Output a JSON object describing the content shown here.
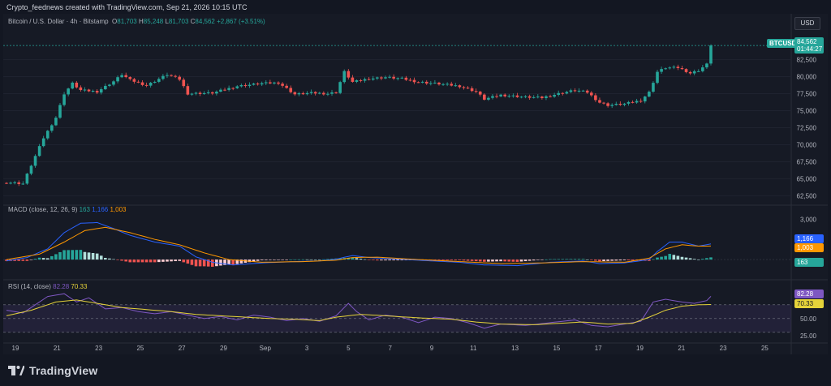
{
  "header": {
    "caption": "Crypto_feednews created with TradingView.com, Sep 21, 2026 10:15 UTC"
  },
  "currency_button": "USD",
  "price_legend": {
    "symbol": "Bitcoin / U.S. Dollar · 4h · Bitstamp",
    "o_label": "O",
    "o_val": "81,703",
    "h_label": "H",
    "h_val": "85,248",
    "l_label": "L",
    "l_val": "81,703",
    "c_label": "C",
    "c_val": "84,562",
    "change": "+2,867 (+3.51%)"
  },
  "macd_legend": {
    "name": "MACD (close, 12, 26, 9)",
    "hist": "163",
    "macd": "1,166",
    "signal": "1,003"
  },
  "rsi_legend": {
    "name": "RSI (14, close)",
    "rsi": "82.28",
    "ma": "70.33"
  },
  "price_tag": {
    "symbol": "BTCUSD",
    "price": "84,562",
    "countdown": "01:44:27"
  },
  "macd_tags": {
    "macd": "1,166",
    "signal": "1,003",
    "hist": "163"
  },
  "rsi_tags": {
    "rsi": "82.28",
    "ma": "70.33"
  },
  "brand": {
    "name": "TradingView"
  },
  "colors": {
    "up": "#26a69a",
    "down": "#ef5350",
    "macd": "#2962ff",
    "signal": "#ff9800",
    "rsi": "#7e57c2",
    "rsi_ma": "#e5d33a"
  },
  "chart_data": [
    {
      "type": "candlestick",
      "title": "Bitcoin / U.S. Dollar · 4h · Bitstamp",
      "ylim": [
        61500,
        86000
      ],
      "yticks": [
        "62,500",
        "65,000",
        "67,500",
        "70,000",
        "72,500",
        "75,000",
        "77,500",
        "80,000",
        "82,500"
      ],
      "xticks": [
        "19",
        "21",
        "23",
        "25",
        "27",
        "29",
        "Sep",
        "3",
        "5",
        "7",
        "9",
        "11",
        "13",
        "15",
        "17",
        "19",
        "21",
        "23",
        "25"
      ],
      "anchors": [
        [
          0,
          64500
        ],
        [
          4,
          64300
        ],
        [
          6,
          67000
        ],
        [
          9,
          71000
        ],
        [
          12,
          74000
        ],
        [
          14,
          77500
        ],
        [
          16,
          79000
        ],
        [
          18,
          78000
        ],
        [
          22,
          77800
        ],
        [
          26,
          79300
        ],
        [
          28,
          80300
        ],
        [
          30,
          79500
        ],
        [
          34,
          78700
        ],
        [
          39,
          80300
        ],
        [
          42,
          79600
        ],
        [
          44,
          77500
        ],
        [
          50,
          77600
        ],
        [
          56,
          78600
        ],
        [
          62,
          79000
        ],
        [
          66,
          79100
        ],
        [
          70,
          77400
        ],
        [
          74,
          77600
        ],
        [
          78,
          77500
        ],
        [
          80,
          77700
        ],
        [
          82,
          80700
        ],
        [
          84,
          79200
        ],
        [
          88,
          79700
        ],
        [
          92,
          79900
        ],
        [
          96,
          79700
        ],
        [
          100,
          79200
        ],
        [
          104,
          79000
        ],
        [
          110,
          78600
        ],
        [
          114,
          77800
        ],
        [
          116,
          76700
        ],
        [
          120,
          77300
        ],
        [
          126,
          77000
        ],
        [
          130,
          76900
        ],
        [
          134,
          77500
        ],
        [
          138,
          78000
        ],
        [
          141,
          77700
        ],
        [
          144,
          76200
        ],
        [
          146,
          75800
        ],
        [
          150,
          76000
        ],
        [
          154,
          76500
        ],
        [
          156,
          77700
        ],
        [
          158,
          80700
        ],
        [
          160,
          81300
        ],
        [
          163,
          81300
        ],
        [
          165,
          80800
        ],
        [
          166,
          80500
        ],
        [
          168,
          80900
        ],
        [
          170,
          81800
        ],
        [
          171,
          84562
        ]
      ],
      "candle_count": 172
    },
    {
      "type": "macd",
      "ylim": [
        -1200,
        3500
      ],
      "yticks": [
        "3,000"
      ],
      "macd_anchors": [
        [
          0,
          -100
        ],
        [
          5,
          150
        ],
        [
          10,
          800
        ],
        [
          14,
          2000
        ],
        [
          18,
          2700
        ],
        [
          22,
          2750
        ],
        [
          26,
          2300
        ],
        [
          30,
          1800
        ],
        [
          36,
          1300
        ],
        [
          42,
          1000
        ],
        [
          46,
          200
        ],
        [
          50,
          -200
        ],
        [
          55,
          -400
        ],
        [
          62,
          -250
        ],
        [
          70,
          -150
        ],
        [
          76,
          -100
        ],
        [
          80,
          30
        ],
        [
          84,
          300
        ],
        [
          88,
          150
        ],
        [
          94,
          50
        ],
        [
          100,
          -50
        ],
        [
          110,
          -200
        ],
        [
          116,
          -400
        ],
        [
          124,
          -450
        ],
        [
          132,
          -200
        ],
        [
          140,
          -100
        ],
        [
          144,
          -300
        ],
        [
          150,
          -250
        ],
        [
          156,
          0
        ],
        [
          158,
          600
        ],
        [
          161,
          1300
        ],
        [
          164,
          1300
        ],
        [
          168,
          1000
        ],
        [
          171,
          1166
        ]
      ],
      "signal_anchors": [
        [
          0,
          0
        ],
        [
          8,
          400
        ],
        [
          14,
          1300
        ],
        [
          19,
          2150
        ],
        [
          24,
          2400
        ],
        [
          30,
          2000
        ],
        [
          36,
          1500
        ],
        [
          42,
          1100
        ],
        [
          48,
          500
        ],
        [
          54,
          0
        ],
        [
          62,
          -200
        ],
        [
          72,
          -150
        ],
        [
          80,
          -50
        ],
        [
          84,
          150
        ],
        [
          90,
          180
        ],
        [
          100,
          0
        ],
        [
          110,
          -150
        ],
        [
          120,
          -300
        ],
        [
          130,
          -250
        ],
        [
          140,
          -150
        ],
        [
          150,
          -200
        ],
        [
          156,
          100
        ],
        [
          160,
          800
        ],
        [
          164,
          1100
        ],
        [
          168,
          1000
        ],
        [
          171,
          1003
        ]
      ]
    },
    {
      "type": "rsi",
      "ylim": [
        18,
        98
      ],
      "yticks": [
        "50.00",
        "25.00"
      ],
      "bands": [
        30,
        70
      ],
      "rsi_anchors": [
        [
          0,
          62
        ],
        [
          4,
          58
        ],
        [
          7,
          70
        ],
        [
          10,
          82
        ],
        [
          14,
          86
        ],
        [
          17,
          74
        ],
        [
          20,
          80
        ],
        [
          24,
          64
        ],
        [
          28,
          66
        ],
        [
          32,
          60
        ],
        [
          36,
          57
        ],
        [
          40,
          60
        ],
        [
          44,
          55
        ],
        [
          48,
          50
        ],
        [
          52,
          53
        ],
        [
          56,
          48
        ],
        [
          60,
          55
        ],
        [
          64,
          52
        ],
        [
          68,
          47
        ],
        [
          72,
          50
        ],
        [
          76,
          46
        ],
        [
          80,
          54
        ],
        [
          83,
          72
        ],
        [
          85,
          60
        ],
        [
          88,
          48
        ],
        [
          92,
          55
        ],
        [
          96,
          52
        ],
        [
          100,
          44
        ],
        [
          104,
          52
        ],
        [
          108,
          50
        ],
        [
          112,
          44
        ],
        [
          116,
          36
        ],
        [
          120,
          42
        ],
        [
          126,
          40
        ],
        [
          132,
          44
        ],
        [
          138,
          48
        ],
        [
          142,
          40
        ],
        [
          146,
          38
        ],
        [
          150,
          42
        ],
        [
          154,
          46
        ],
        [
          157,
          74
        ],
        [
          160,
          78
        ],
        [
          164,
          74
        ],
        [
          167,
          72
        ],
        [
          170,
          76
        ],
        [
          171,
          82.28
        ]
      ],
      "ma_anchors": [
        [
          0,
          54
        ],
        [
          6,
          62
        ],
        [
          12,
          74
        ],
        [
          17,
          77
        ],
        [
          22,
          72
        ],
        [
          28,
          66
        ],
        [
          34,
          63
        ],
        [
          40,
          60
        ],
        [
          46,
          56
        ],
        [
          52,
          54
        ],
        [
          58,
          52
        ],
        [
          64,
          50
        ],
        [
          70,
          49
        ],
        [
          76,
          47
        ],
        [
          80,
          52
        ],
        [
          86,
          56
        ],
        [
          92,
          54
        ],
        [
          100,
          51
        ],
        [
          108,
          49
        ],
        [
          114,
          45
        ],
        [
          120,
          42
        ],
        [
          128,
          41
        ],
        [
          134,
          43
        ],
        [
          140,
          45
        ],
        [
          146,
          42
        ],
        [
          152,
          43
        ],
        [
          156,
          52
        ],
        [
          160,
          62
        ],
        [
          164,
          68
        ],
        [
          168,
          70
        ],
        [
          171,
          70.33
        ]
      ]
    }
  ]
}
